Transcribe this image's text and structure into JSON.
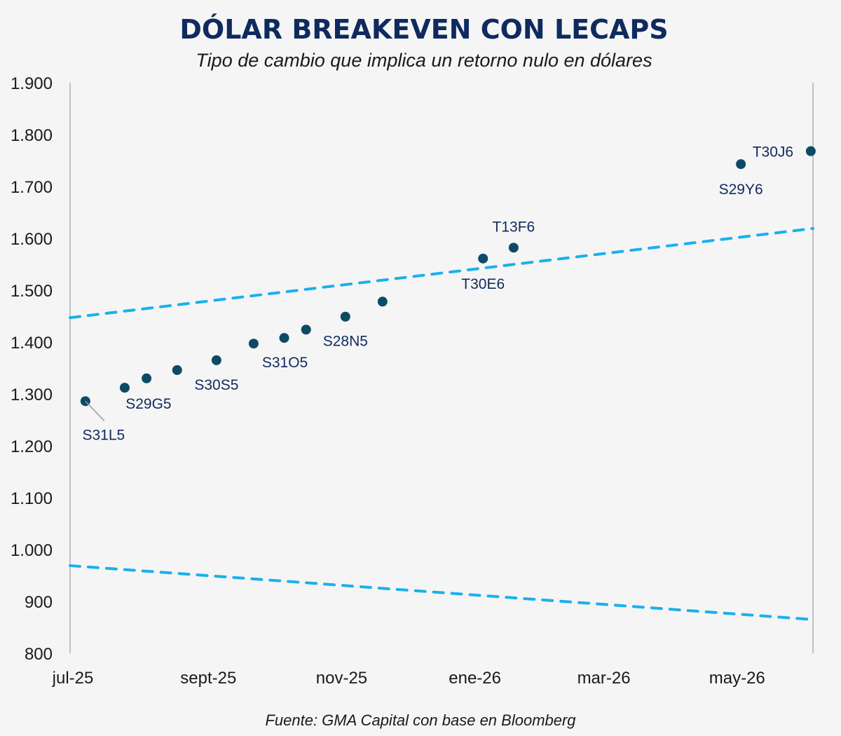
{
  "chart_data": {
    "type": "scatter",
    "title": "DÓLAR BREAKEVEN CON LECAPS",
    "subtitle": "Tipo de cambio que implica un retorno nulo en dólares",
    "source": "Fuente: GMA Capital con base en Bloomberg",
    "xlabel": "",
    "ylabel": "",
    "xlim": [
      "2025-07-01",
      "2026-06-06"
    ],
    "ylim": [
      800,
      1900
    ],
    "y_ticks": [
      800,
      900,
      1000,
      1100,
      1200,
      1300,
      1400,
      1500,
      1600,
      1700,
      1800,
      1900
    ],
    "y_tick_labels": [
      "800",
      "900",
      "1.000",
      "1.100",
      "1.200",
      "1.300",
      "1.400",
      "1.500",
      "1.600",
      "1.700",
      "1.800",
      "1.900"
    ],
    "x_ticks": [
      "2025-07-01",
      "2025-09-01",
      "2025-11-01",
      "2026-01-01",
      "2026-03-01",
      "2026-05-01"
    ],
    "x_tick_labels": [
      "jul-25",
      "sept-25",
      "nov-25",
      "ene-26",
      "mar-26",
      "may-26"
    ],
    "grid": false,
    "points": [
      {
        "x": "2025-07-08",
        "y": 1286,
        "label": "S31L5"
      },
      {
        "x": "2025-07-26",
        "y": 1312,
        "label": "S29G5"
      },
      {
        "x": "2025-08-05",
        "y": 1330,
        "label": ""
      },
      {
        "x": "2025-08-19",
        "y": 1346,
        "label": ""
      },
      {
        "x": "2025-09-06",
        "y": 1365,
        "label": "S30S5"
      },
      {
        "x": "2025-09-23",
        "y": 1397,
        "label": ""
      },
      {
        "x": "2025-10-07",
        "y": 1408,
        "label": "S31O5"
      },
      {
        "x": "2025-10-17",
        "y": 1424,
        "label": ""
      },
      {
        "x": "2025-11-04",
        "y": 1449,
        "label": "S28N5"
      },
      {
        "x": "2025-11-21",
        "y": 1478,
        "label": ""
      },
      {
        "x": "2026-01-06",
        "y": 1561,
        "label": "T30E6"
      },
      {
        "x": "2026-01-20",
        "y": 1582,
        "label": "T13F6"
      },
      {
        "x": "2026-05-04",
        "y": 1743,
        "label": "S29Y6"
      },
      {
        "x": "2026-06-05",
        "y": 1768,
        "label": "T30J6"
      }
    ],
    "bands": [
      {
        "style": "dashed",
        "x": [
          "2025-07-01",
          "2026-06-06"
        ],
        "y": [
          1447,
          1619
        ]
      },
      {
        "style": "dashed",
        "x": [
          "2025-07-01",
          "2026-06-06"
        ],
        "y": [
          969,
          865
        ]
      }
    ],
    "colors": {
      "points": "#0d4a66",
      "bands": "#1ab0ec",
      "labels": "#0f2a5e",
      "title": "#0f2a5e",
      "background": "#f5f5f5"
    }
  }
}
